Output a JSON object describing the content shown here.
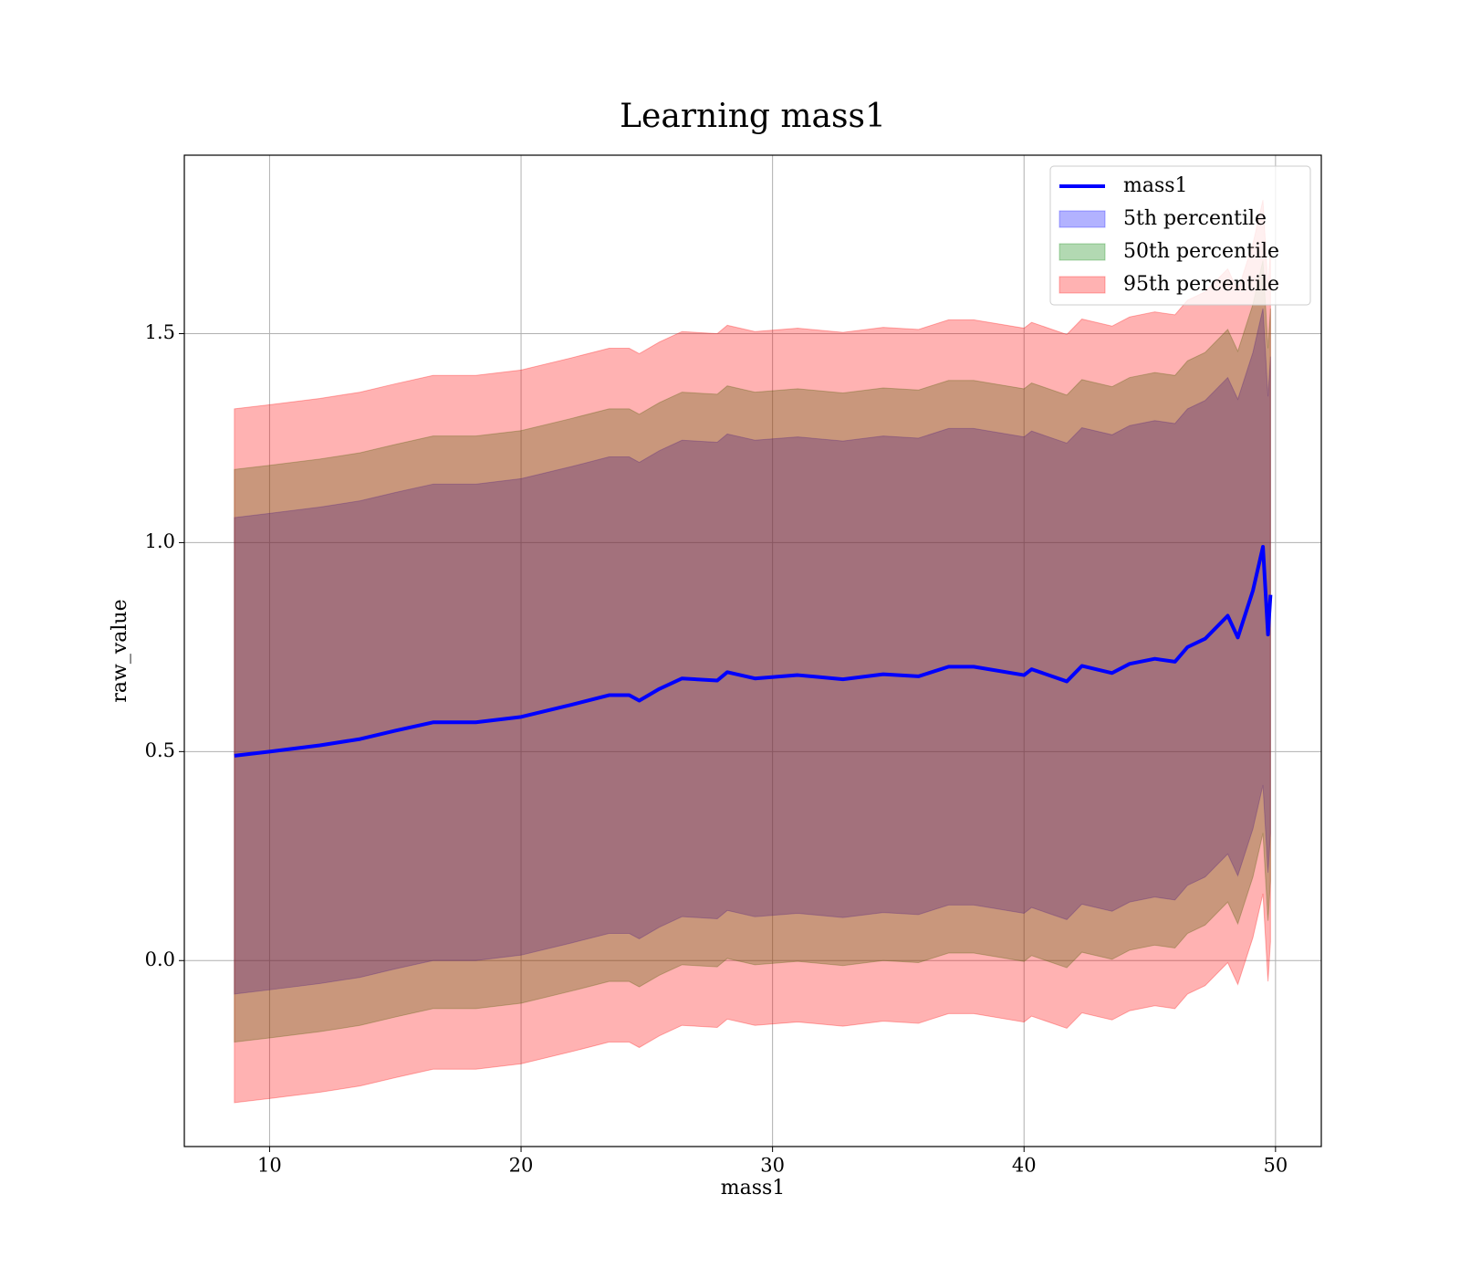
{
  "chart_data": {
    "type": "line-band",
    "title": "Learning mass1",
    "xlabel": "mass1",
    "ylabel": "raw_value",
    "x": [
      8.6,
      10,
      12,
      13.6,
      15,
      16.5,
      18.2,
      20,
      22,
      23.5,
      24.3,
      24.7,
      25.5,
      26.4,
      27.8,
      28.2,
      29.3,
      31,
      32.8,
      34.4,
      35.8,
      37,
      38,
      40,
      40.3,
      41.7,
      42.3,
      43.5,
      44.2,
      45.2,
      46,
      46.5,
      47.2,
      48.1,
      48.5,
      49.1,
      49.5,
      49.7,
      49.8
    ],
    "series": [
      {
        "name": "mass1",
        "color": "#0000ff",
        "kind": "line",
        "values": [
          0.49,
          0.5,
          0.515,
          0.53,
          0.55,
          0.57,
          0.57,
          0.583,
          0.612,
          0.635,
          0.635,
          0.622,
          0.65,
          0.675,
          0.67,
          0.69,
          0.675,
          0.683,
          0.673,
          0.685,
          0.68,
          0.703,
          0.703,
          0.683,
          0.697,
          0.668,
          0.705,
          0.688,
          0.71,
          0.722,
          0.715,
          0.75,
          0.77,
          0.825,
          0.773,
          0.885,
          0.99,
          0.78,
          0.875
        ]
      },
      {
        "name": "5th percentile",
        "color": "#0000ff",
        "kind": "band",
        "lower": [
          -0.08,
          -0.07,
          -0.055,
          -0.04,
          -0.02,
          0,
          0,
          0.013,
          0.042,
          0.065,
          0.065,
          0.052,
          0.08,
          0.105,
          0.1,
          0.12,
          0.105,
          0.113,
          0.103,
          0.115,
          0.11,
          0.133,
          0.133,
          0.113,
          0.127,
          0.098,
          0.135,
          0.118,
          0.14,
          0.152,
          0.145,
          0.18,
          0.2,
          0.255,
          0.203,
          0.315,
          0.42,
          0.21,
          0.305
        ],
        "upper": [
          1.06,
          1.07,
          1.085,
          1.1,
          1.12,
          1.14,
          1.14,
          1.153,
          1.182,
          1.205,
          1.205,
          1.192,
          1.22,
          1.245,
          1.24,
          1.26,
          1.245,
          1.253,
          1.243,
          1.255,
          1.25,
          1.273,
          1.273,
          1.253,
          1.267,
          1.238,
          1.275,
          1.258,
          1.28,
          1.292,
          1.285,
          1.32,
          1.34,
          1.395,
          1.343,
          1.455,
          1.56,
          1.35,
          1.445
        ]
      },
      {
        "name": "50th percentile",
        "color": "#008000",
        "kind": "band",
        "lower": [
          -0.195,
          -0.185,
          -0.17,
          -0.155,
          -0.135,
          -0.115,
          -0.115,
          -0.102,
          -0.073,
          -0.05,
          -0.05,
          -0.063,
          -0.035,
          -0.01,
          -0.015,
          0.005,
          -0.01,
          -0.002,
          -0.012,
          0,
          -0.005,
          0.018,
          0.018,
          -0.002,
          0.012,
          -0.017,
          0.02,
          0.003,
          0.025,
          0.037,
          0.03,
          0.065,
          0.085,
          0.14,
          0.088,
          0.2,
          0.305,
          0.095,
          0.19
        ],
        "upper": [
          1.175,
          1.185,
          1.2,
          1.215,
          1.235,
          1.255,
          1.255,
          1.268,
          1.297,
          1.32,
          1.32,
          1.307,
          1.335,
          1.36,
          1.355,
          1.375,
          1.36,
          1.368,
          1.358,
          1.37,
          1.365,
          1.388,
          1.388,
          1.368,
          1.382,
          1.353,
          1.39,
          1.373,
          1.395,
          1.407,
          1.4,
          1.435,
          1.455,
          1.51,
          1.458,
          1.57,
          1.675,
          1.465,
          1.56
        ]
      },
      {
        "name": "95th percentile",
        "color": "#ff0000",
        "kind": "band",
        "lower": [
          -0.34,
          -0.33,
          -0.315,
          -0.3,
          -0.28,
          -0.26,
          -0.26,
          -0.247,
          -0.218,
          -0.195,
          -0.195,
          -0.208,
          -0.18,
          -0.155,
          -0.16,
          -0.14,
          -0.155,
          -0.147,
          -0.157,
          -0.145,
          -0.15,
          -0.127,
          -0.127,
          -0.147,
          -0.133,
          -0.162,
          -0.125,
          -0.142,
          -0.12,
          -0.108,
          -0.115,
          -0.08,
          -0.06,
          -0.005,
          -0.057,
          0.055,
          0.16,
          -0.05,
          0.045
        ],
        "upper": [
          1.32,
          1.33,
          1.345,
          1.36,
          1.38,
          1.4,
          1.4,
          1.413,
          1.442,
          1.465,
          1.465,
          1.452,
          1.48,
          1.505,
          1.5,
          1.52,
          1.505,
          1.513,
          1.503,
          1.515,
          1.51,
          1.533,
          1.533,
          1.513,
          1.527,
          1.498,
          1.535,
          1.518,
          1.54,
          1.552,
          1.545,
          1.58,
          1.6,
          1.655,
          1.603,
          1.715,
          1.82,
          1.61,
          1.705
        ]
      }
    ],
    "xlim": [
      6.61,
      51.82
    ],
    "ylim": [
      -0.445,
      1.927
    ],
    "xticks": [
      10,
      20,
      30,
      40,
      50
    ],
    "yticks": [
      {
        "value": 0,
        "label": "0.0"
      },
      0.5,
      {
        "value": 1,
        "label": "1.0"
      },
      1.5
    ],
    "grid": true,
    "legend": "upper right"
  }
}
